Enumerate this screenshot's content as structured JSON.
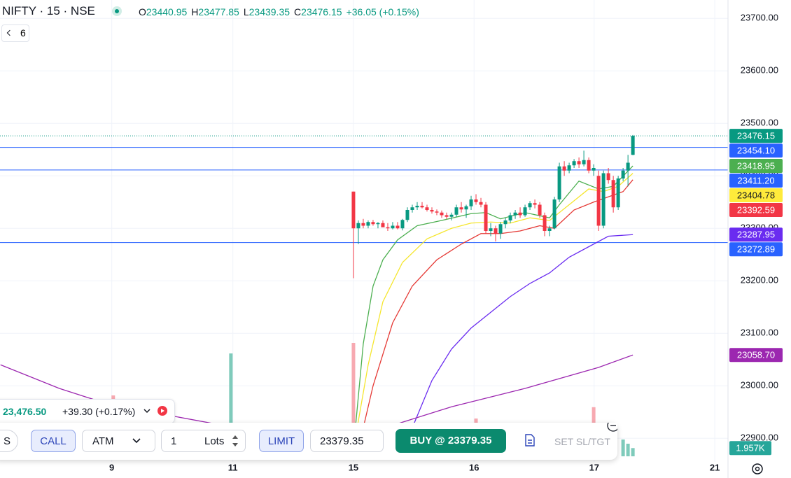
{
  "header": {
    "symbol": "NIFTY · 15 · NSE",
    "ohlc": [
      {
        "label": "O",
        "value": "23440.95"
      },
      {
        "label": "H",
        "value": "23477.85"
      },
      {
        "label": "L",
        "value": "23439.35"
      },
      {
        "label": "C",
        "value": "23476.15"
      }
    ],
    "change": "+36.05 (+0.15%)",
    "indicator_count": "6"
  },
  "chart_data": {
    "type": "candlestick",
    "ylim": [
      22855,
      23735
    ],
    "yticks": [
      {
        "value": 23700,
        "label": "23700.00"
      },
      {
        "value": 23600,
        "label": "23600.00"
      },
      {
        "value": 23500,
        "label": "23500.00"
      },
      {
        "value": 23400,
        "label": "23400.00"
      },
      {
        "value": 23300,
        "label": "23300.00"
      },
      {
        "value": 23200,
        "label": "23200.00"
      },
      {
        "value": 23100,
        "label": "23100.00"
      },
      {
        "value": 23000,
        "label": "23000.00"
      },
      {
        "value": 22900,
        "label": "22900.00"
      }
    ],
    "xlim": [
      -72.1,
      76.4
    ],
    "xticks": [
      {
        "value": -49.3,
        "label": "9"
      },
      {
        "value": -24.6,
        "label": "11"
      },
      {
        "value": 0,
        "label": "15"
      },
      {
        "value": 24.6,
        "label": "16"
      },
      {
        "value": 49.1,
        "label": "17"
      },
      {
        "value": 73.7,
        "label": "21"
      }
    ],
    "up_color": "#089981",
    "down_color": "#f23645",
    "ohlc": [
      [
        23370,
        23370,
        23205,
        23300
      ],
      [
        23300,
        23315,
        23270,
        23310
      ],
      [
        23310,
        23318,
        23300,
        23305
      ],
      [
        23305,
        23315,
        23300,
        23312
      ],
      [
        23312,
        23316,
        23305,
        23308
      ],
      [
        23308,
        23312,
        23300,
        23310
      ],
      [
        23310,
        23315,
        23305,
        23302
      ],
      [
        23302,
        23310,
        23295,
        23300
      ],
      [
        23300,
        23312,
        23298,
        23305
      ],
      [
        23305,
        23312,
        23298,
        23300
      ],
      [
        23300,
        23318,
        23296,
        23316
      ],
      [
        23316,
        23340,
        23312,
        23335
      ],
      [
        23335,
        23345,
        23330,
        23340
      ],
      [
        23340,
        23350,
        23335,
        23343
      ],
      [
        23343,
        23350,
        23338,
        23340
      ],
      [
        23340,
        23345,
        23332,
        23335
      ],
      [
        23335,
        23340,
        23328,
        23332
      ],
      [
        23332,
        23336,
        23325,
        23330
      ],
      [
        23330,
        23334,
        23320,
        23325
      ],
      [
        23325,
        23330,
        23318,
        23322
      ],
      [
        23322,
        23330,
        23315,
        23326
      ],
      [
        23326,
        23345,
        23322,
        23340
      ],
      [
        23340,
        23350,
        23330,
        23336
      ],
      [
        23336,
        23345,
        23320,
        23342
      ],
      [
        23342,
        23362,
        23335,
        23355
      ],
      [
        23355,
        23365,
        23345,
        23350
      ],
      [
        23350,
        23358,
        23340,
        23345
      ],
      [
        23345,
        23350,
        23290,
        23295
      ],
      [
        23295,
        23310,
        23285,
        23300
      ],
      [
        23300,
        23305,
        23275,
        23290
      ],
      [
        23290,
        23312,
        23280,
        23308
      ],
      [
        23308,
        23320,
        23300,
        23315
      ],
      [
        23315,
        23330,
        23310,
        23325
      ],
      [
        23325,
        23335,
        23318,
        23330
      ],
      [
        23330,
        23340,
        23320,
        23325
      ],
      [
        23325,
        23345,
        23322,
        23340
      ],
      [
        23340,
        23352,
        23335,
        23348
      ],
      [
        23348,
        23355,
        23338,
        23345
      ],
      [
        23345,
        23350,
        23320,
        23325
      ],
      [
        23325,
        23330,
        23285,
        23295
      ],
      [
        23295,
        23305,
        23285,
        23300
      ],
      [
        23300,
        23360,
        23298,
        23355
      ],
      [
        23355,
        23425,
        23350,
        23418
      ],
      [
        23418,
        23428,
        23400,
        23410
      ],
      [
        23410,
        23425,
        23405,
        23420
      ],
      [
        23420,
        23432,
        23415,
        23428
      ],
      [
        23428,
        23435,
        23415,
        23422
      ],
      [
        23422,
        23448,
        23418,
        23430
      ],
      [
        23430,
        23435,
        23405,
        23410
      ],
      [
        23410,
        23422,
        23400,
        23415
      ],
      [
        23400,
        23410,
        23295,
        23305
      ],
      [
        23305,
        23410,
        23300,
        23405
      ],
      [
        23405,
        23415,
        23385,
        23392
      ],
      [
        23392,
        23400,
        23330,
        23340
      ],
      [
        23340,
        23400,
        23335,
        23395
      ],
      [
        23395,
        23415,
        23390,
        23410
      ],
      [
        23410,
        23440,
        23380,
        23425
      ],
      [
        23440,
        23477.85,
        23439.35,
        23476.15
      ]
    ],
    "lines": [
      {
        "color": "#4caf50",
        "x": [
          0,
          2,
          4,
          6,
          9,
          13,
          18,
          24,
          27,
          30,
          35,
          40,
          42,
          46,
          50,
          53,
          57
        ],
        "values": [
          22880,
          23080,
          23190,
          23240,
          23278,
          23305,
          23315,
          23328,
          23330,
          23318,
          23330,
          23320,
          23345,
          23390,
          23375,
          23380,
          23418.95
        ]
      },
      {
        "color": "#f5e62e",
        "x": [
          0,
          3,
          6,
          10,
          15,
          20,
          24,
          28,
          32,
          36,
          40,
          44,
          48,
          51,
          54,
          57
        ],
        "values": [
          22880,
          23040,
          23160,
          23235,
          23280,
          23300,
          23310,
          23312,
          23310,
          23320,
          23315,
          23345,
          23375,
          23370,
          23380,
          23404.78
        ]
      },
      {
        "color": "#e53935",
        "x": [
          1,
          4,
          8,
          12,
          17,
          22,
          26,
          30,
          34,
          38,
          41,
          45,
          49,
          52,
          55,
          57
        ],
        "values": [
          22880,
          23000,
          23120,
          23190,
          23240,
          23270,
          23290,
          23290,
          23295,
          23305,
          23300,
          23335,
          23350,
          23360,
          23370,
          23392.59
        ]
      },
      {
        "color": "#6a2cf0",
        "x": [
          12,
          16,
          20,
          24,
          28,
          32,
          36,
          40,
          44,
          48,
          52,
          57
        ],
        "values": [
          22920,
          23010,
          23070,
          23110,
          23140,
          23170,
          23195,
          23215,
          23245,
          23265,
          23285,
          23287.95
        ]
      },
      {
        "color": "#9c27b0",
        "x": [
          -72,
          -60,
          -50,
          -21,
          -8,
          4,
          20,
          35,
          50,
          57
        ],
        "values": [
          23040,
          22995,
          22965,
          22915,
          22900,
          22913,
          22960,
          22995,
          23035,
          23058.7
        ]
      }
    ],
    "volume_lim": [
      0,
      25
    ],
    "volume": [
      {
        "color": "#7fcbbb",
        "x": [
          -25,
          -24.3,
          55,
          56,
          57
        ],
        "values": [
          24.5,
          2.5,
          4,
          3,
          1.957
        ]
      },
      {
        "color": "#f7a9b1",
        "x": [
          -49,
          0,
          25,
          49,
          53
        ],
        "values": [
          14.5,
          27,
          9,
          11.7,
          5
        ]
      }
    ],
    "volume_tag": {
      "value": 1.957,
      "label": "1.957K",
      "color": "#26a69a"
    },
    "price_tags": [
      {
        "value": 23476.15,
        "label": "23476.15",
        "color": "#089981",
        "text_color": "#ffffff",
        "line": "dotted"
      },
      {
        "value": 23454.1,
        "label": "23454.10",
        "color": "#2962ff",
        "text_color": "#ffffff",
        "line": "solid"
      },
      {
        "value": 23418.95,
        "label": "23418.95",
        "color": "#4caf50",
        "text_color": "#ffffff"
      },
      {
        "value": 23411.2,
        "label": "23411.20",
        "color": "#2962ff",
        "text_color": "#ffffff",
        "line": "solid"
      },
      {
        "value": 23404.78,
        "label": "23404.78",
        "color": "#ffeb3b",
        "text_color": "#131722"
      },
      {
        "value": 23392.59,
        "label": "23392.59",
        "color": "#f23645",
        "text_color": "#ffffff"
      },
      {
        "value": 23287.95,
        "label": "23287.95",
        "color": "#6a2cf0",
        "text_color": "#ffffff"
      },
      {
        "value": 23272.89,
        "label": "23272.89",
        "color": "#2962ff",
        "text_color": "#ffffff",
        "line": "solid"
      },
      {
        "value": 23058.7,
        "label": "23058.70",
        "color": "#9c27b0",
        "text_color": "#ffffff"
      }
    ]
  },
  "ticker": {
    "price": "23,476.50",
    "change": "+39.30 (+0.17%)"
  },
  "order_panel": {
    "side": "S",
    "option": "CALL",
    "strike": "ATM",
    "quantity": "1",
    "unit": "Lots",
    "order_type": "LIMIT",
    "price": "23379.35",
    "buy_button": "BUY @ 23379.35",
    "sl_tgt": "SET SL/TGT"
  }
}
